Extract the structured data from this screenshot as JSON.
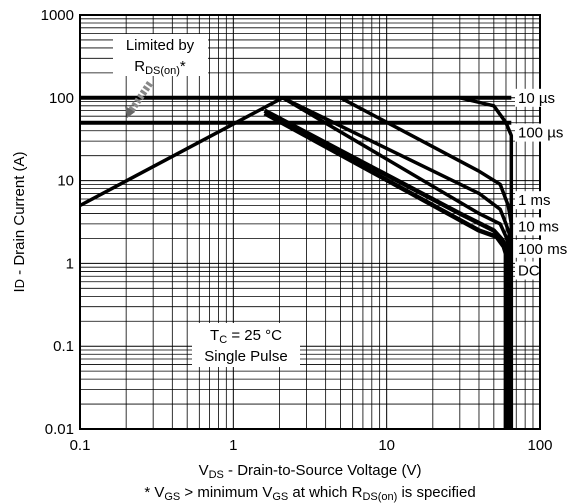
{
  "chart_data": {
    "type": "line",
    "xscale": "log",
    "yscale": "log",
    "xlim": [
      0.1,
      100
    ],
    "ylim": [
      0.01,
      1000
    ],
    "grid": true,
    "x_ticks": [
      {
        "value": 0.1,
        "label": "0.1"
      },
      {
        "value": 1,
        "label": "1"
      },
      {
        "value": 10,
        "label": "10"
      },
      {
        "value": 100,
        "label": "100"
      }
    ],
    "y_ticks": [
      {
        "value": 1000,
        "label": "1000"
      },
      {
        "value": 100,
        "label": "100"
      },
      {
        "value": 10,
        "label": "10"
      },
      {
        "value": 1,
        "label": "1"
      },
      {
        "value": 0.1,
        "label": "0.1"
      },
      {
        "value": 0.01,
        "label": "0.01"
      }
    ],
    "xlabel": {
      "pre": "V",
      "sub": "DS",
      "post": " - Drain-to-Source Voltage (V)"
    },
    "ylabel": {
      "pre": "I",
      "sub": "D",
      "post": " - Drain Current (A)"
    },
    "footnote": {
      "p1": "* V",
      "s1": "GS",
      "p2": " > minimum V",
      "s2": "GS",
      "p3": " at which R",
      "s3": "DS(on)",
      "p4": " is specified"
    },
    "annotation_rds": {
      "line1": "Limited by",
      "pre": "R",
      "sub": "DS(on)",
      "post": "*"
    },
    "annotation_tc": {
      "pre": "T",
      "sub": "C",
      "post": " = 25 °C",
      "line2": "Single Pulse"
    },
    "rds_limit": {
      "x": [
        0.1,
        2.1
      ],
      "y": [
        5,
        100
      ]
    },
    "series": [
      {
        "name": "10 µs",
        "label_y": 100,
        "x": [
          30,
          50,
          60,
          65,
          65
        ],
        "y": [
          100,
          80,
          50,
          35,
          0.01
        ]
      },
      {
        "name": "100 µs",
        "label_y": 38,
        "x": [
          5,
          40,
          55,
          62,
          65,
          65
        ],
        "y": [
          100,
          13,
          9,
          5,
          3,
          0.01
        ]
      },
      {
        "name": "1 ms",
        "label_y": 5.8,
        "x": [
          2.1,
          40,
          55,
          60,
          63,
          63
        ],
        "y": [
          100,
          7,
          4.5,
          3,
          2.3,
          0.01
        ]
      },
      {
        "name": "10 ms",
        "label_y": 2.8,
        "x": [
          2.1,
          40,
          55,
          60,
          62,
          62
        ],
        "y": [
          100,
          4,
          3,
          2.1,
          1.7,
          0.01
        ]
      },
      {
        "name": "100 ms",
        "label_y": 1.5,
        "x": [
          1.6,
          30,
          50,
          57,
          60,
          60
        ],
        "y": [
          70,
          4,
          2.5,
          1.9,
          1.5,
          0.01
        ]
      },
      {
        "name": "DC",
        "label_y": 0.82,
        "x": [
          1.6,
          40,
          52,
          58,
          60,
          60
        ],
        "y": [
          65,
          2.5,
          2.1,
          1.6,
          1.3,
          0.01
        ]
      }
    ],
    "package_limit": {
      "y": [
        100,
        50
      ]
    }
  }
}
